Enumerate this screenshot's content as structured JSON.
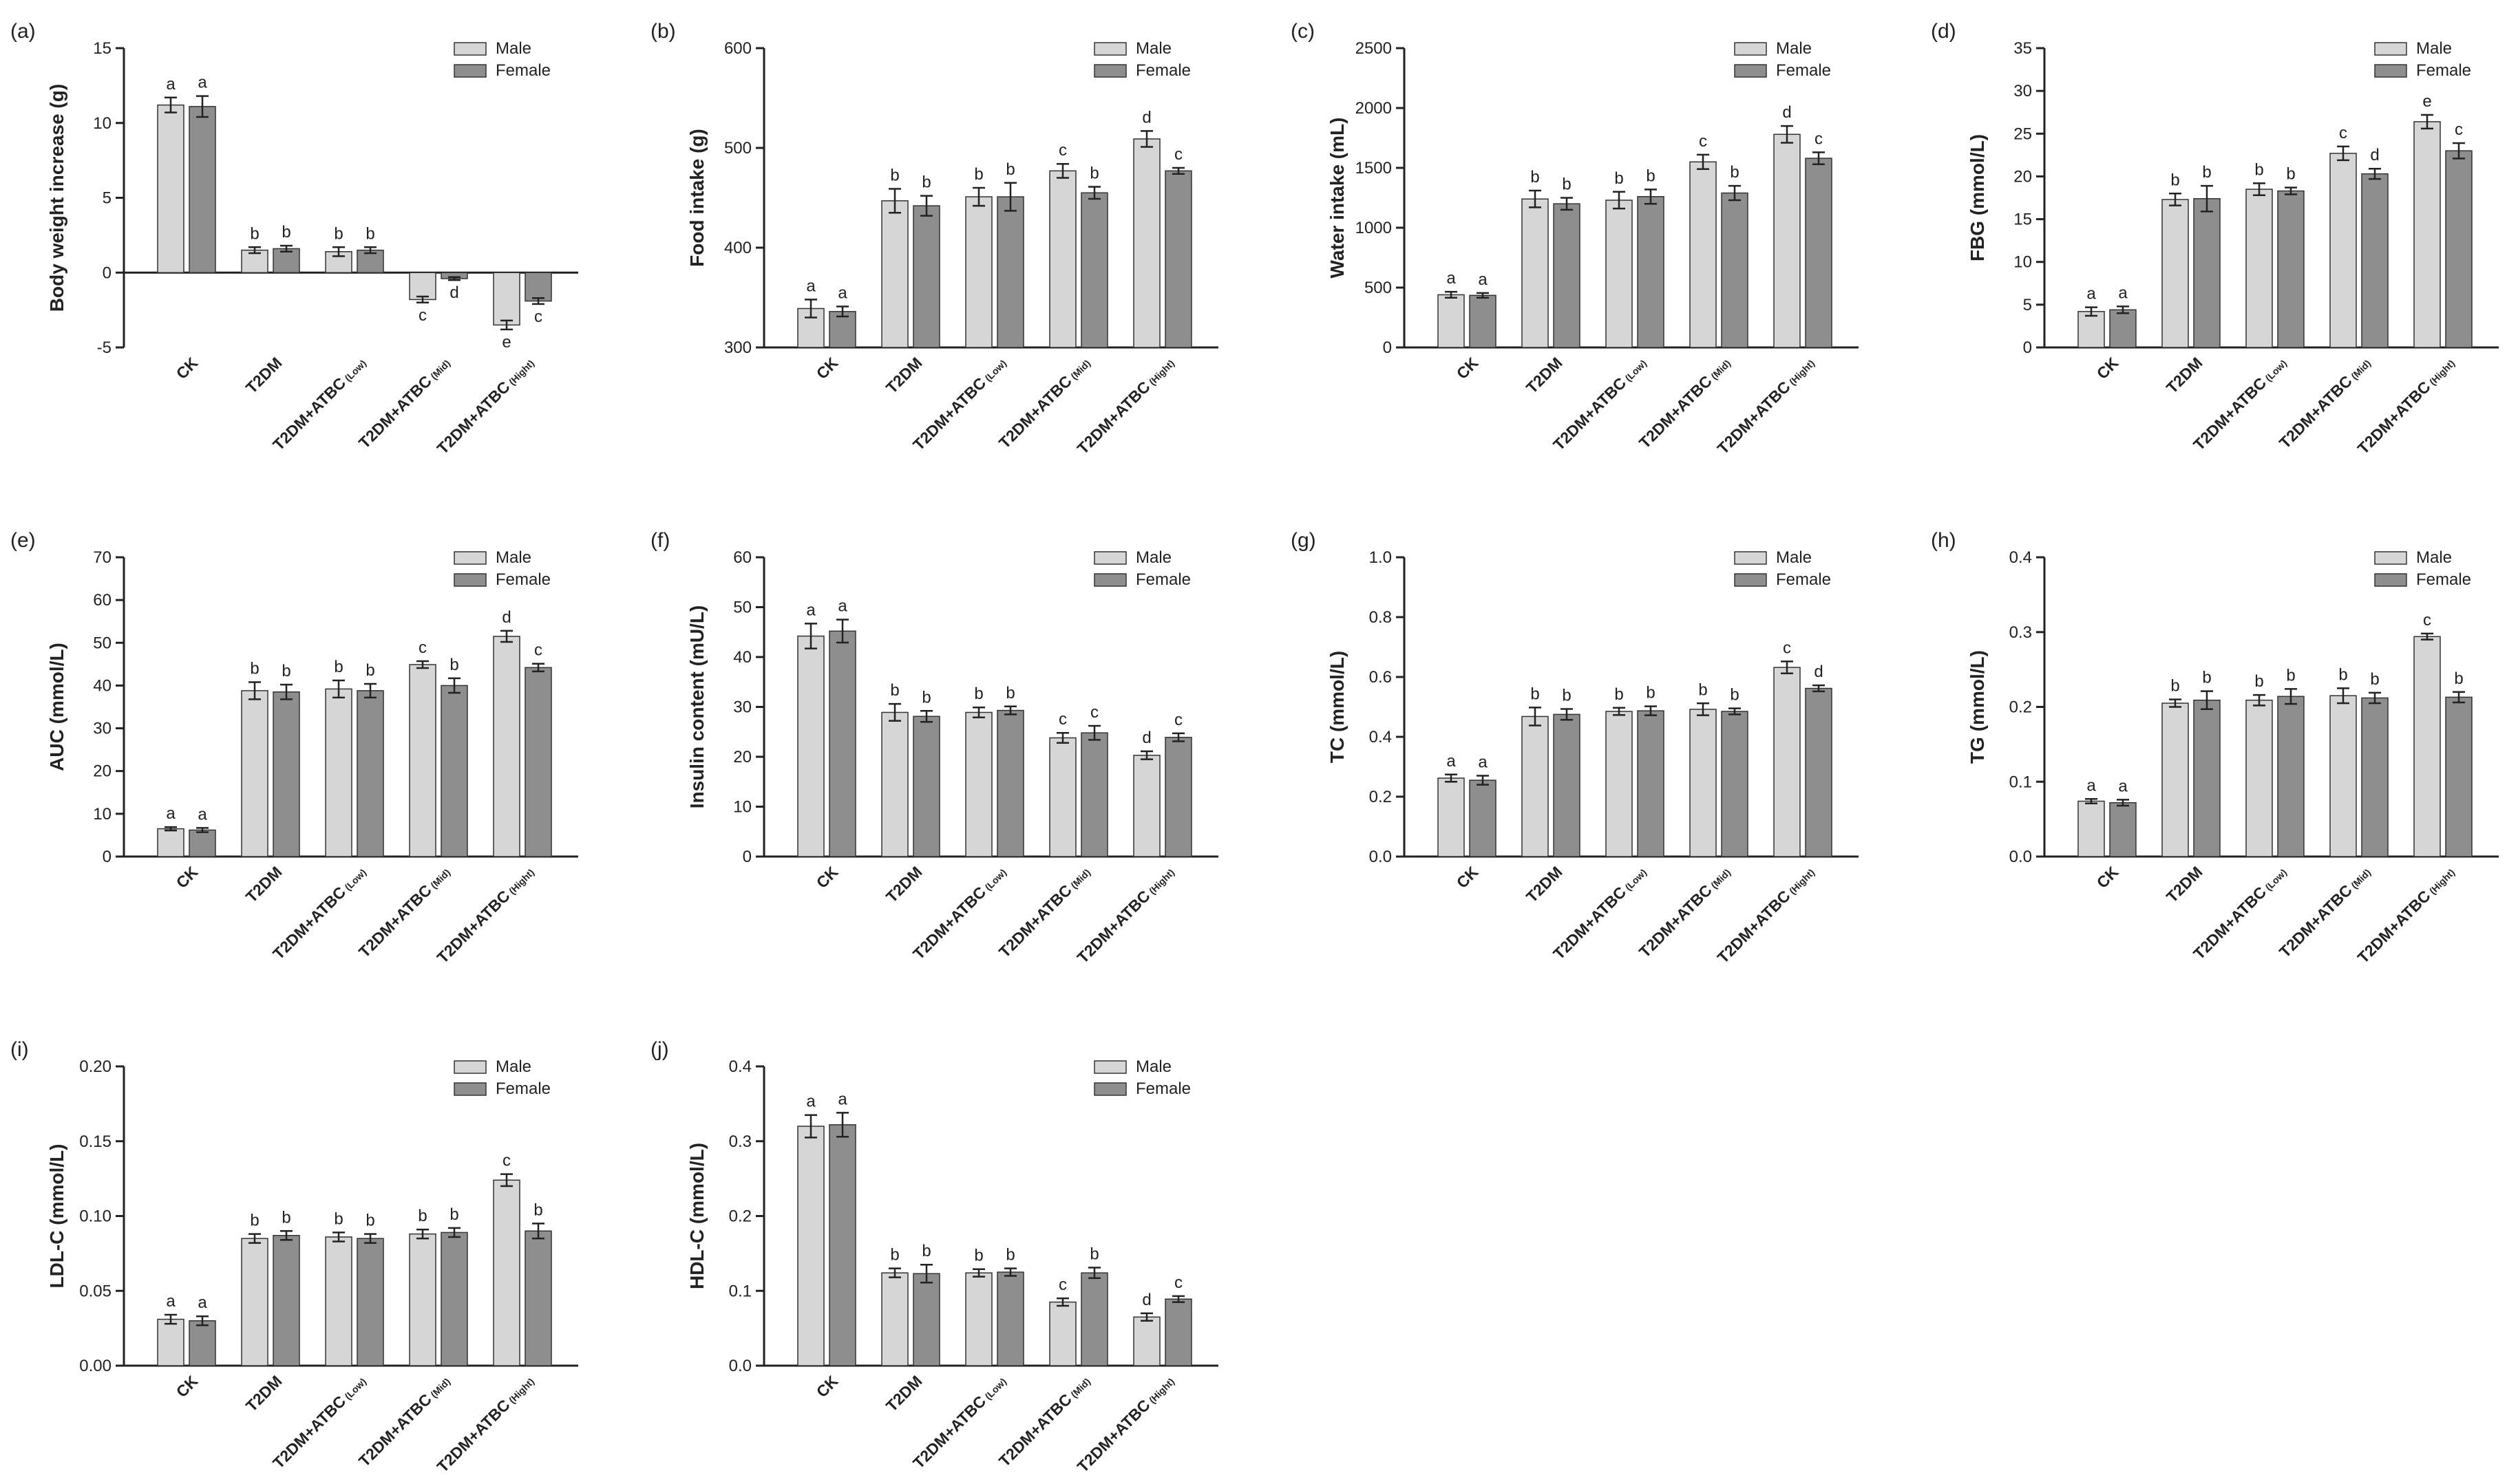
{
  "legend": {
    "male": "Male",
    "female": "Female"
  },
  "colors": {
    "male": "#d6d6d6",
    "female": "#8e8e8e",
    "axis": "#222222"
  },
  "categories": [
    {
      "main": "CK",
      "sub": ""
    },
    {
      "main": "T2DM",
      "sub": ""
    },
    {
      "main": "T2DM+ATBC",
      "sub": "(Low)"
    },
    {
      "main": "T2DM+ATBC",
      "sub": "(Mid)"
    },
    {
      "main": "T2DM+ATBC",
      "sub": "(Hight)"
    }
  ],
  "chart_data": [
    {
      "id": "a",
      "panel_label": "(a)",
      "type": "bar",
      "ylabel": "Body weight increase (g)",
      "ylim": [
        -5,
        15
      ],
      "yticks": [
        "-5",
        "0",
        "5",
        "10",
        "15"
      ],
      "series": [
        {
          "name": "Male",
          "values": [
            11.2,
            1.5,
            1.4,
            -1.8,
            -3.5
          ],
          "errors": [
            0.5,
            0.2,
            0.3,
            0.2,
            0.3
          ],
          "letters": [
            "a",
            "b",
            "b",
            "c",
            "e"
          ]
        },
        {
          "name": "Female",
          "values": [
            11.1,
            1.6,
            1.5,
            -0.4,
            -1.9
          ],
          "errors": [
            0.7,
            0.2,
            0.2,
            0.1,
            0.2
          ],
          "letters": [
            "a",
            "b",
            "b",
            "d",
            "c"
          ]
        }
      ]
    },
    {
      "id": "b",
      "panel_label": "(b)",
      "type": "bar",
      "ylabel": "Food intake (g)",
      "ylim": [
        300,
        600
      ],
      "yticks": [
        "300",
        "400",
        "500",
        "600"
      ],
      "series": [
        {
          "name": "Male",
          "values": [
            339,
            447,
            451,
            477,
            509
          ],
          "errors": [
            9,
            12,
            9,
            7,
            8
          ],
          "letters": [
            "a",
            "b",
            "b",
            "c",
            "d"
          ]
        },
        {
          "name": "Female",
          "values": [
            336,
            442,
            451,
            455,
            477
          ],
          "errors": [
            5,
            10,
            14,
            6,
            3
          ],
          "letters": [
            "a",
            "b",
            "b",
            "b",
            "c"
          ]
        }
      ]
    },
    {
      "id": "c",
      "panel_label": "(c)",
      "type": "bar",
      "ylabel": "Water intake (mL)",
      "ylim": [
        0,
        2500
      ],
      "yticks": [
        "0",
        "500",
        "1000",
        "1500",
        "2000",
        "2500"
      ],
      "series": [
        {
          "name": "Male",
          "values": [
            440,
            1240,
            1230,
            1550,
            1780
          ],
          "errors": [
            25,
            70,
            70,
            60,
            70
          ],
          "letters": [
            "a",
            "b",
            "b",
            "c",
            "d"
          ]
        },
        {
          "name": "Female",
          "values": [
            435,
            1200,
            1260,
            1290,
            1580
          ],
          "errors": [
            20,
            50,
            60,
            60,
            50
          ],
          "letters": [
            "a",
            "b",
            "b",
            "b",
            "c"
          ]
        }
      ]
    },
    {
      "id": "d",
      "panel_label": "(d)",
      "type": "bar",
      "ylabel": "FBG (mmol/L)",
      "ylim": [
        0,
        35
      ],
      "yticks": [
        "0",
        "5",
        "10",
        "15",
        "20",
        "25",
        "30",
        "35"
      ],
      "series": [
        {
          "name": "Male",
          "values": [
            4.2,
            17.3,
            18.5,
            22.7,
            26.4
          ],
          "errors": [
            0.5,
            0.7,
            0.7,
            0.8,
            0.8
          ],
          "letters": [
            "a",
            "b",
            "b",
            "c",
            "e"
          ]
        },
        {
          "name": "Female",
          "values": [
            4.4,
            17.4,
            18.3,
            20.3,
            23.0
          ],
          "errors": [
            0.4,
            1.5,
            0.4,
            0.6,
            0.9
          ],
          "letters": [
            "a",
            "b",
            "b",
            "d",
            "c"
          ]
        }
      ]
    },
    {
      "id": "e",
      "panel_label": "(e)",
      "type": "bar",
      "ylabel": "AUC (mmol/L)",
      "ylim": [
        0,
        70
      ],
      "yticks": [
        "0",
        "10",
        "20",
        "30",
        "40",
        "50",
        "60",
        "70"
      ],
      "series": [
        {
          "name": "Male",
          "values": [
            6.5,
            38.8,
            39.2,
            44.9,
            51.5
          ],
          "errors": [
            0.4,
            2.0,
            2.0,
            0.8,
            1.3
          ],
          "letters": [
            "a",
            "b",
            "b",
            "c",
            "d"
          ]
        },
        {
          "name": "Female",
          "values": [
            6.2,
            38.5,
            38.8,
            40.0,
            44.2
          ],
          "errors": [
            0.5,
            1.7,
            1.6,
            1.7,
            0.9
          ],
          "letters": [
            "a",
            "b",
            "b",
            "b",
            "c"
          ]
        }
      ]
    },
    {
      "id": "f",
      "panel_label": "(f)",
      "type": "bar",
      "ylabel": "Insulin content  (mU/L)",
      "ylim": [
        0,
        60
      ],
      "yticks": [
        "0",
        "10",
        "20",
        "30",
        "40",
        "50",
        "60"
      ],
      "series": [
        {
          "name": "Male",
          "values": [
            44.2,
            28.9,
            28.9,
            23.8,
            20.3
          ],
          "errors": [
            2.5,
            1.7,
            1.0,
            1.0,
            0.8
          ],
          "letters": [
            "a",
            "b",
            "b",
            "c",
            "d"
          ]
        },
        {
          "name": "Female",
          "values": [
            45.2,
            28.1,
            29.3,
            24.8,
            23.9
          ],
          "errors": [
            2.3,
            1.1,
            0.8,
            1.4,
            0.8
          ],
          "letters": [
            "a",
            "b",
            "b",
            "c",
            "c"
          ]
        }
      ]
    },
    {
      "id": "g",
      "panel_label": "(g)",
      "type": "bar",
      "ylabel": "TC (mmol/L)",
      "ylim": [
        0,
        1.0
      ],
      "yticks": [
        "0.0",
        "0.2",
        "0.4",
        "0.6",
        "0.8",
        "1.0"
      ],
      "series": [
        {
          "name": "Male",
          "values": [
            0.262,
            0.468,
            0.485,
            0.492,
            0.632
          ],
          "errors": [
            0.012,
            0.03,
            0.012,
            0.02,
            0.02
          ],
          "letters": [
            "a",
            "b",
            "b",
            "b",
            "c"
          ]
        },
        {
          "name": "Female",
          "values": [
            0.255,
            0.475,
            0.487,
            0.485,
            0.562
          ],
          "errors": [
            0.015,
            0.018,
            0.015,
            0.01,
            0.01
          ],
          "letters": [
            "a",
            "b",
            "b",
            "b",
            "d"
          ]
        }
      ]
    },
    {
      "id": "h",
      "panel_label": "(h)",
      "type": "bar",
      "ylabel": "TG (mmol/L)",
      "ylim": [
        0,
        0.4
      ],
      "yticks": [
        "0.0",
        "0.1",
        "0.2",
        "0.3",
        "0.4"
      ],
      "series": [
        {
          "name": "Male",
          "values": [
            0.074,
            0.205,
            0.209,
            0.215,
            0.294
          ],
          "errors": [
            0.003,
            0.005,
            0.007,
            0.01,
            0.004
          ],
          "letters": [
            "a",
            "b",
            "b",
            "b",
            "c"
          ]
        },
        {
          "name": "Female",
          "values": [
            0.072,
            0.209,
            0.214,
            0.212,
            0.213
          ],
          "errors": [
            0.004,
            0.012,
            0.01,
            0.007,
            0.007
          ],
          "letters": [
            "a",
            "b",
            "b",
            "b",
            "b"
          ]
        }
      ]
    },
    {
      "id": "i",
      "panel_label": "(i)",
      "type": "bar",
      "ylabel": "LDL-C (mmol/L)",
      "ylim": [
        0,
        0.2
      ],
      "yticks": [
        "0.00",
        "0.05",
        "0.10",
        "0.15",
        "0.20"
      ],
      "series": [
        {
          "name": "Male",
          "values": [
            0.031,
            0.085,
            0.086,
            0.088,
            0.124
          ],
          "errors": [
            0.003,
            0.003,
            0.003,
            0.003,
            0.004
          ],
          "letters": [
            "a",
            "b",
            "b",
            "b",
            "c"
          ]
        },
        {
          "name": "Female",
          "values": [
            0.03,
            0.087,
            0.085,
            0.089,
            0.09
          ],
          "errors": [
            0.003,
            0.003,
            0.003,
            0.003,
            0.005
          ],
          "letters": [
            "a",
            "b",
            "b",
            "b",
            "b"
          ]
        }
      ]
    },
    {
      "id": "j",
      "panel_label": "(j)",
      "type": "bar",
      "ylabel": "HDL-C (mmol/L)",
      "ylim": [
        0,
        0.4
      ],
      "yticks": [
        "0.0",
        "0.1",
        "0.2",
        "0.3",
        "0.4"
      ],
      "series": [
        {
          "name": "Male",
          "values": [
            0.32,
            0.124,
            0.124,
            0.085,
            0.065
          ],
          "errors": [
            0.015,
            0.006,
            0.005,
            0.005,
            0.005
          ],
          "letters": [
            "a",
            "b",
            "b",
            "c",
            "d"
          ]
        },
        {
          "name": "Female",
          "values": [
            0.322,
            0.123,
            0.125,
            0.124,
            0.089
          ],
          "errors": [
            0.016,
            0.012,
            0.005,
            0.007,
            0.004
          ],
          "letters": [
            "a",
            "b",
            "b",
            "b",
            "c"
          ]
        }
      ]
    }
  ]
}
